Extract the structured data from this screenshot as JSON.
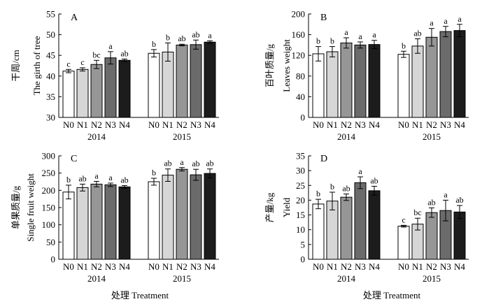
{
  "chart_data": [
    {
      "type": "bar",
      "panel_label": "A",
      "ylabel_cn": "干周/cm",
      "ylabel_en": "The girth of tree",
      "ylim": [
        30,
        55
      ],
      "yticks": [
        30,
        35,
        40,
        45,
        50,
        55
      ],
      "groups": [
        "2014",
        "2015"
      ],
      "categories": [
        "N0",
        "N1",
        "N2",
        "N3",
        "N4"
      ],
      "series": [
        {
          "name": "2014",
          "values": [
            41.2,
            41.6,
            42.8,
            44.4,
            43.8
          ],
          "errors": [
            0.4,
            0.4,
            1.0,
            1.5,
            0.3
          ],
          "letters": [
            "c",
            "c",
            "bc",
            "a",
            "ab"
          ]
        },
        {
          "name": "2015",
          "values": [
            45.5,
            45.8,
            47.5,
            47.6,
            48.2
          ],
          "errors": [
            0.9,
            2.2,
            0.2,
            1.1,
            0.3
          ],
          "letters": [
            "b",
            "b",
            "ab",
            "ab",
            "a"
          ]
        }
      ]
    },
    {
      "type": "bar",
      "panel_label": "B",
      "ylabel_cn": "百叶质量/g",
      "ylabel_en": "Leaves weight",
      "ylim": [
        0,
        200
      ],
      "yticks": [
        0,
        40,
        80,
        120,
        160,
        200
      ],
      "groups": [
        "2014",
        "2015"
      ],
      "categories": [
        "N0",
        "N1",
        "N2",
        "N3",
        "N4"
      ],
      "series": [
        {
          "name": "2014",
          "values": [
            123,
            127,
            144,
            140,
            141
          ],
          "errors": [
            14,
            10,
            10,
            6,
            8
          ],
          "letters": [
            "b",
            "b",
            "a",
            "a",
            "a"
          ]
        },
        {
          "name": "2015",
          "values": [
            122,
            138,
            155,
            166,
            168
          ],
          "errors": [
            6,
            14,
            17,
            10,
            12
          ],
          "letters": [
            "b",
            "ab",
            "a",
            "a",
            "a"
          ]
        }
      ]
    },
    {
      "type": "bar",
      "panel_label": "C",
      "ylabel_cn": "单果质量/g",
      "ylabel_en": "Single fruit weight",
      "ylim": [
        0,
        300
      ],
      "yticks": [
        0,
        50,
        100,
        150,
        200,
        250,
        300
      ],
      "groups": [
        "2014",
        "2015"
      ],
      "categories": [
        "N0",
        "N1",
        "N2",
        "N3",
        "N4"
      ],
      "series": [
        {
          "name": "2014",
          "values": [
            195,
            208,
            218,
            216,
            210
          ],
          "errors": [
            20,
            10,
            8,
            5,
            4
          ],
          "letters": [
            "b",
            "ab",
            "a",
            "a",
            "ab"
          ]
        },
        {
          "name": "2015",
          "values": [
            225,
            244,
            261,
            245,
            249
          ],
          "errors": [
            10,
            18,
            5,
            16,
            13
          ],
          "letters": [
            "b",
            "ab",
            "a",
            "ab",
            "ab"
          ]
        }
      ]
    },
    {
      "type": "bar",
      "panel_label": "D",
      "ylabel_cn": "产量/kg",
      "ylabel_en": "Yield",
      "ylim": [
        0,
        35
      ],
      "yticks": [
        0,
        5,
        10,
        15,
        20,
        25,
        30,
        35
      ],
      "groups": [
        "2014",
        "2015"
      ],
      "categories": [
        "N0",
        "N1",
        "N2",
        "N3",
        "N4"
      ],
      "series": [
        {
          "name": "2014",
          "values": [
            18.7,
            19.7,
            21.0,
            25.9,
            23.2
          ],
          "errors": [
            1.6,
            3.0,
            1.1,
            2.0,
            1.5
          ],
          "letters": [
            "b",
            "b",
            "ab",
            "a",
            "ab"
          ]
        },
        {
          "name": "2015",
          "values": [
            11.2,
            11.9,
            15.8,
            16.5,
            16.0
          ],
          "errors": [
            0.3,
            2.0,
            1.6,
            3.5,
            2.2
          ],
          "letters": [
            "c",
            "bc",
            "ab",
            "a",
            "ab"
          ]
        }
      ]
    }
  ],
  "footer": {
    "xlabel_left": "处理 Treatment",
    "xlabel_right": "处理 Treatment"
  },
  "colors": {
    "N0": "#ffffff",
    "N1": "#d6d6d6",
    "N2": "#969696",
    "N3": "#6b6b6b",
    "N4": "#1c1c1c"
  }
}
